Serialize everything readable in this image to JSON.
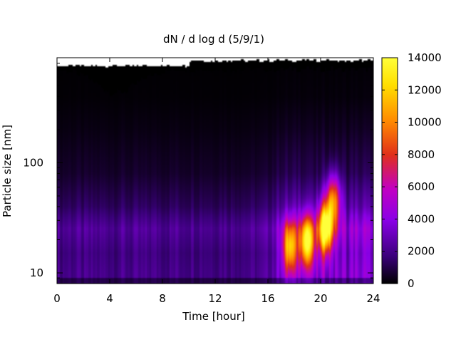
{
  "chart_data": {
    "type": "heatmap",
    "title": "dN / d log d (5/9/1)",
    "xlabel": "Time [hour]",
    "ylabel": "Particle size [nm]",
    "xlim": [
      0,
      24
    ],
    "ylim": [
      8,
      900
    ],
    "y_scale": "log",
    "x_ticks": [
      "0",
      "4",
      "8",
      "12",
      "16",
      "20",
      "24"
    ],
    "x_tick_values": [
      0,
      4,
      8,
      12,
      16,
      20,
      24
    ],
    "y_ticks": [
      "10",
      "100"
    ],
    "y_tick_values": [
      10,
      100
    ],
    "colorbar": {
      "min": 0,
      "max": 14000,
      "ticks": [
        "0",
        "2000",
        "4000",
        "6000",
        "8000",
        "10000",
        "12000",
        "14000"
      ],
      "tick_values": [
        0,
        2000,
        4000,
        6000,
        8000,
        10000,
        12000,
        14000
      ],
      "palette": [
        "#000000",
        "#3a007a",
        "#8a00e6",
        "#c200c2",
        "#e0301a",
        "#ff8a00",
        "#ffdf00",
        "#ffff3a"
      ]
    },
    "baseline_profile": [
      {
        "size_nm": 10,
        "value": 2000
      },
      {
        "size_nm": 15,
        "value": 1800
      },
      {
        "size_nm": 25,
        "value": 2300
      },
      {
        "size_nm": 40,
        "value": 1300
      },
      {
        "size_nm": 80,
        "value": 600
      },
      {
        "size_nm": 200,
        "value": 250
      },
      {
        "size_nm": 400,
        "value": 80
      }
    ],
    "peak_events": [
      {
        "time_hour": 17.7,
        "size_nm": 17,
        "value": 9000
      },
      {
        "time_hour": 19.0,
        "size_nm": 19,
        "value": 11500
      },
      {
        "time_hour": 20.4,
        "size_nm": 25,
        "value": 12500
      },
      {
        "time_hour": 21.0,
        "size_nm": 45,
        "value": 8000
      }
    ]
  }
}
